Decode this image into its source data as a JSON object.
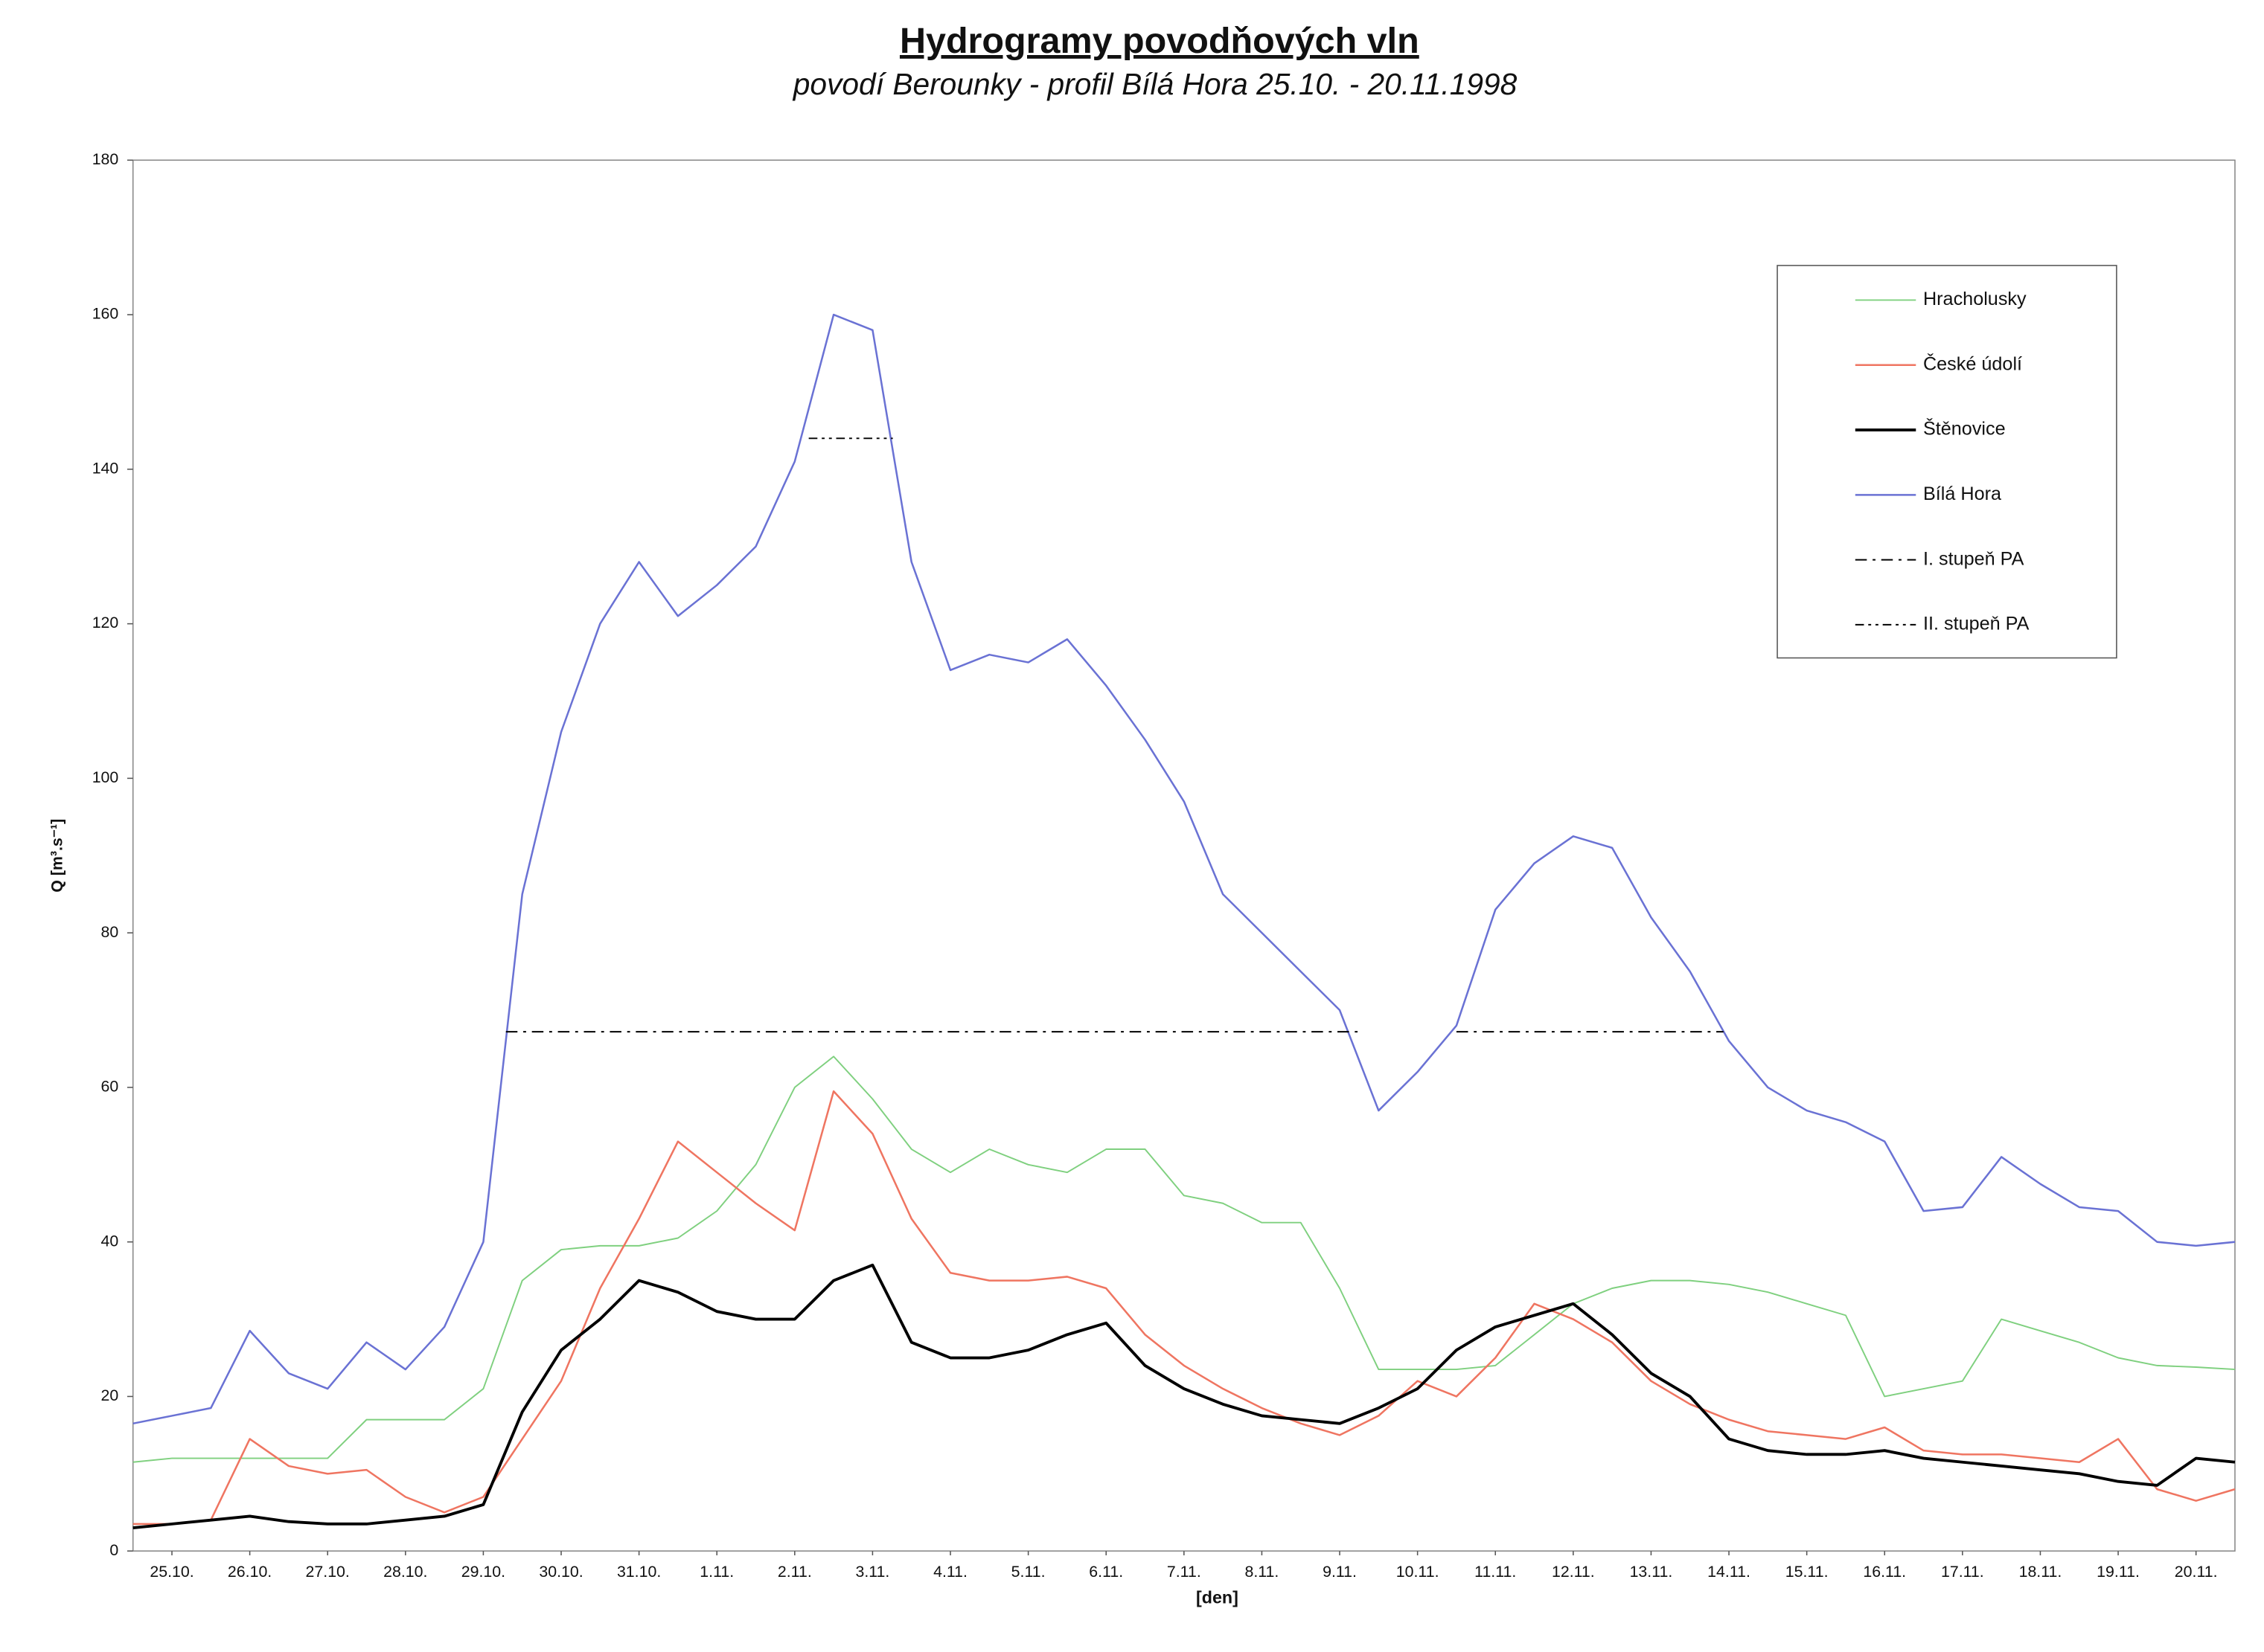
{
  "chart_data": {
    "type": "line",
    "title": "Hydrogramy povodňových vln",
    "subtitle": "povodí Berounky - profil Bílá Hora  25.10. - 20.11.1998",
    "ylabel": "Q [m³.s⁻¹]",
    "xlabel": "[den]",
    "xlim": [
      0,
      27
    ],
    "ylim": [
      0,
      180
    ],
    "yticks": [
      0,
      20,
      40,
      60,
      80,
      100,
      120,
      140,
      160,
      180
    ],
    "xticks": [
      {
        "value": 0.5,
        "label": "25.10."
      },
      {
        "value": 1.5,
        "label": "26.10."
      },
      {
        "value": 2.5,
        "label": "27.10."
      },
      {
        "value": 3.5,
        "label": "28.10."
      },
      {
        "value": 4.5,
        "label": "29.10."
      },
      {
        "value": 5.5,
        "label": "30.10."
      },
      {
        "value": 6.5,
        "label": "31.10."
      },
      {
        "value": 7.5,
        "label": "1.11."
      },
      {
        "value": 8.5,
        "label": "2.11."
      },
      {
        "value": 9.5,
        "label": "3.11."
      },
      {
        "value": 10.5,
        "label": "4.11."
      },
      {
        "value": 11.5,
        "label": "5.11."
      },
      {
        "value": 12.5,
        "label": "6.11."
      },
      {
        "value": 13.5,
        "label": "7.11."
      },
      {
        "value": 14.5,
        "label": "8.11."
      },
      {
        "value": 15.5,
        "label": "9.11."
      },
      {
        "value": 16.5,
        "label": "10.11."
      },
      {
        "value": 17.5,
        "label": "11.11."
      },
      {
        "value": 18.5,
        "label": "12.11."
      },
      {
        "value": 19.5,
        "label": "13.11."
      },
      {
        "value": 20.5,
        "label": "14.11."
      },
      {
        "value": 21.5,
        "label": "15.11."
      },
      {
        "value": 22.5,
        "label": "16.11."
      },
      {
        "value": 23.5,
        "label": "17.11."
      },
      {
        "value": 24.5,
        "label": "18.11."
      },
      {
        "value": 25.5,
        "label": "19.11."
      },
      {
        "value": 26.5,
        "label": "20.11."
      }
    ],
    "legend": "upper right",
    "x": [
      0,
      0.5,
      1,
      1.5,
      2,
      2.5,
      3,
      3.5,
      4,
      4.5,
      5,
      5.5,
      6,
      6.5,
      7,
      7.5,
      8,
      8.5,
      9,
      9.5,
      10,
      10.5,
      11,
      11.5,
      12,
      12.5,
      13,
      13.5,
      14,
      14.5,
      15,
      15.5,
      16,
      16.5,
      17,
      17.5,
      18,
      18.5,
      19,
      19.5,
      20,
      20.5,
      21,
      21.5,
      22,
      22.5,
      23,
      23.5,
      24,
      24.5,
      25,
      25.5,
      26,
      26.5,
      27
    ],
    "series": [
      {
        "name": "Hracholusky",
        "color": "#7fd07f",
        "dash": "solid",
        "width": 1,
        "values": [
          11.5,
          12,
          12,
          12,
          12,
          12,
          17,
          17,
          17,
          21,
          35,
          39,
          39.5,
          39.5,
          40.5,
          44,
          50,
          60,
          64,
          58.5,
          52,
          49,
          52,
          50,
          49,
          52,
          52,
          46,
          45,
          42.5,
          42.5,
          34,
          23.5,
          23.5,
          23.5,
          24,
          28,
          32,
          34,
          35,
          35,
          34.5,
          33.5,
          32,
          30.5,
          20,
          21,
          22,
          30,
          28.5,
          27,
          25,
          24,
          23.8,
          23.5
        ]
      },
      {
        "name": "České údolí",
        "color": "#ef7561",
        "dash": "solid",
        "width": 1.3,
        "values": [
          3.5,
          3.5,
          4,
          14.5,
          11,
          10,
          10.5,
          7,
          5,
          7,
          14.5,
          22,
          34,
          43,
          53,
          49,
          45,
          41.5,
          59.5,
          54,
          43,
          36,
          35,
          35,
          35.5,
          34,
          28,
          24,
          21,
          18.5,
          16.5,
          15,
          17.5,
          22,
          20,
          25,
          32,
          30,
          27,
          22,
          19,
          17,
          15.5,
          15,
          14.5,
          16,
          13,
          12.5,
          12.5,
          12,
          11.5,
          14.5,
          8,
          6.5,
          8
        ]
      },
      {
        "name": "Štěnovice",
        "color": "#000000",
        "dash": "solid",
        "width": 2,
        "values": [
          3,
          3.5,
          4,
          4.5,
          3.8,
          3.5,
          3.5,
          4,
          4.5,
          6,
          18,
          26,
          30,
          35,
          33.5,
          31,
          30,
          30,
          35,
          37,
          27,
          25,
          25,
          26,
          28,
          29.5,
          24,
          21,
          19,
          17.5,
          17,
          16.5,
          18.5,
          21,
          26,
          29,
          30.5,
          32,
          28,
          23,
          20,
          14.5,
          13,
          12.5,
          12.5,
          13,
          12,
          11.5,
          11,
          10.5,
          10,
          9,
          8.5,
          12,
          11.5
        ]
      },
      {
        "name": "Bílá Hora",
        "color": "#6a72d4",
        "dash": "solid",
        "width": 1.3,
        "values": [
          16.5,
          17.5,
          18.5,
          28.5,
          23,
          21,
          27,
          23.5,
          29,
          40,
          85,
          106,
          120,
          128,
          121,
          125,
          130,
          141,
          160,
          158,
          128,
          114,
          116,
          115,
          118,
          112,
          105,
          97,
          85,
          80,
          75,
          70,
          57,
          62,
          68,
          83,
          89,
          92.5,
          91,
          82,
          75,
          66,
          60,
          57,
          55.5,
          53,
          44,
          44.5,
          51,
          47.5,
          44.5,
          44,
          40,
          39.5,
          40
        ]
      },
      {
        "name": "I. stupeň PA",
        "color": "#000000",
        "dash": "dash-dot",
        "width": 1,
        "x": [
          4.79,
          15.73,
          16.4,
          17.0,
          20.43
        ],
        "values": [
          67.2,
          67.2,
          null,
          67.2,
          67.2
        ]
      },
      {
        "name": "II. stupeň PA",
        "color": "#000000",
        "dash": "dash-dot-dot",
        "width": 1,
        "x": [
          8.68,
          9.76
        ],
        "values": [
          144,
          144
        ]
      }
    ]
  }
}
